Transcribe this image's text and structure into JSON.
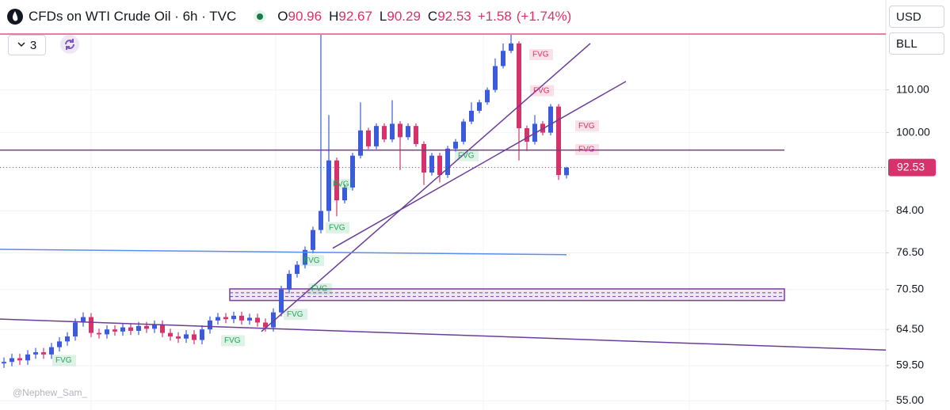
{
  "header": {
    "title": "CFDs on WTI Crude Oil · 6h · TVC",
    "ohlc": [
      {
        "label": "O",
        "value": "90.96"
      },
      {
        "label": "H",
        "value": "92.67"
      },
      {
        "label": "L",
        "value": "90.29"
      },
      {
        "label": "C",
        "value": "92.53"
      }
    ],
    "change": "+1.58",
    "change_pct": "(+1.74%)"
  },
  "toolbar": {
    "interval_count": "3",
    "currency": "USD",
    "unit": "BLL"
  },
  "watermark": "@Nephew_Sam_",
  "chart_data": {
    "type": "candlestick",
    "log": true,
    "grid": true,
    "up_color": "#3b5bdb",
    "down_color": "#d6336c",
    "xlim": [
      -0.5,
      111.5
    ],
    "ylim": [
      53.9,
      134.4
    ],
    "yticks": [
      {
        "value": 110,
        "label": "110.00"
      },
      {
        "value": 100,
        "label": "100.00"
      },
      {
        "value": 84,
        "label": "84.00"
      },
      {
        "value": 76.5,
        "label": "76.50"
      },
      {
        "value": 70.5,
        "label": "70.50"
      },
      {
        "value": 64.5,
        "label": "64.50"
      },
      {
        "value": 59.5,
        "label": "59.50"
      },
      {
        "value": 55,
        "label": "55.00"
      }
    ],
    "last": 92.53,
    "open": [
      59.8,
      60.0,
      60.5,
      60.2,
      61.0,
      61.3,
      61.0,
      62.0,
      62.8,
      63.5,
      65.5,
      66.3,
      64.0,
      63.8,
      64.5,
      64.2,
      64.8,
      64.3,
      65.0,
      64.6,
      65.2,
      64.0,
      63.5,
      63.2,
      63.8,
      63.0,
      64.5,
      65.8,
      66.3,
      66.0,
      66.5,
      65.8,
      66.2,
      65.5,
      64.8,
      67.0,
      70.5,
      73.0,
      74.5,
      77.0,
      80.5,
      84.0,
      94.0,
      86.0,
      88.5,
      95.0,
      100.5,
      97.0,
      101.5,
      98.5,
      102.0,
      99.0,
      101.5,
      97.5,
      91.5,
      95.0,
      91.0,
      96.5,
      98.0,
      102.5,
      105.0,
      107.0,
      110.0,
      116.0,
      120.0,
      122.0,
      101.0,
      98.0,
      102.0,
      100.0,
      106.0,
      90.96
    ],
    "high": [
      60.6,
      61.1,
      61.1,
      61.6,
      61.9,
      61.9,
      62.6,
      63.4,
      64.1,
      66.1,
      67.0,
      66.9,
      64.6,
      65.1,
      65.1,
      65.4,
      65.4,
      65.6,
      65.6,
      65.8,
      65.8,
      64.6,
      64.1,
      64.4,
      64.4,
      65.1,
      66.4,
      66.9,
      66.9,
      67.1,
      67.1,
      66.8,
      66.8,
      66.1,
      67.6,
      71.1,
      73.6,
      75.1,
      77.6,
      81.1,
      130.5,
      104,
      94.6,
      89.1,
      95.6,
      107,
      101.1,
      102.1,
      102.1,
      107.5,
      102.6,
      102.1,
      102.1,
      98.1,
      95.6,
      95.6,
      97.1,
      98.6,
      103.1,
      107,
      107.6,
      110.6,
      118,
      122,
      126.5,
      122.6,
      101.6,
      104,
      102.6,
      106.6,
      106.6,
      92.67
    ],
    "low": [
      59.2,
      59.4,
      59.6,
      59.6,
      60.4,
      60.4,
      60.4,
      61.4,
      62.2,
      62.9,
      64.9,
      63.4,
      63.2,
      63.2,
      63.6,
      63.6,
      63.7,
      63.7,
      64.0,
      64.0,
      63.4,
      62.9,
      62.6,
      62.6,
      62.4,
      62.4,
      63.9,
      65.2,
      65.4,
      65.4,
      65.2,
      65.2,
      64.9,
      64.2,
      64.2,
      66.4,
      69.9,
      72.4,
      73.9,
      76.4,
      79.9,
      82,
      83,
      85.4,
      87.9,
      94.4,
      96.4,
      96.4,
      97.9,
      97.9,
      92,
      98.4,
      96.9,
      89,
      90.9,
      89.5,
      90.4,
      95.9,
      97.4,
      101.9,
      104.4,
      106.4,
      109.4,
      115.4,
      119.4,
      94,
      96,
      97.4,
      99.4,
      99.4,
      90,
      90.29
    ],
    "close": [
      60.0,
      60.5,
      60.2,
      61.0,
      61.3,
      61.0,
      62.0,
      62.8,
      63.5,
      65.5,
      66.3,
      64.0,
      63.8,
      64.5,
      64.2,
      64.8,
      64.3,
      65.0,
      64.6,
      65.2,
      64.0,
      63.5,
      63.2,
      63.8,
      63.0,
      64.5,
      65.8,
      66.3,
      66.0,
      66.5,
      65.8,
      66.2,
      65.5,
      64.8,
      67.0,
      70.5,
      73.0,
      74.5,
      77.0,
      80.5,
      84.0,
      94.0,
      86.0,
      88.5,
      95.0,
      100.5,
      97.0,
      101.5,
      98.5,
      102.0,
      99.0,
      101.5,
      97.5,
      91.5,
      95.0,
      91.0,
      96.5,
      98.0,
      102.5,
      105.0,
      107.0,
      110.0,
      116.0,
      120.0,
      122.0,
      101.0,
      98.0,
      102.0,
      100.0,
      106.0,
      91.0,
      92.53
    ],
    "lines": [
      {
        "color": "#6a3d9a",
        "x": [
          -0.5,
          111.3
        ],
        "y": [
          66.0,
          61.6
        ]
      },
      {
        "color": "#6a3d9a",
        "x": [
          32.5,
          74
        ],
        "y": [
          64.2,
          122
        ]
      },
      {
        "color": "#6a3d9a",
        "x": [
          41.5,
          78.5
        ],
        "y": [
          77.3,
          112.1
        ]
      },
      {
        "color": "#6a3d9a",
        "x": [
          -0.5,
          98.5
        ],
        "y": [
          96.2,
          96.2
        ]
      },
      {
        "color": "#5b8def",
        "x": [
          -0.5,
          71
        ],
        "y": [
          77.1,
          76.2
        ]
      }
    ],
    "zones": [
      {
        "color": "#7b3fa0",
        "x": [
          28.5,
          98.5
        ],
        "y": [
          70.6,
          68.8
        ]
      }
    ],
    "fvg": [
      {
        "text": "FVG",
        "x": 6.5,
        "y": 60.2,
        "color": "#26a65b"
      },
      {
        "text": "FVG",
        "x": 27.8,
        "y": 62.9,
        "color": "#26a65b"
      },
      {
        "text": "FVG",
        "x": 35.7,
        "y": 66.7,
        "color": "#26a65b"
      },
      {
        "text": "FVG",
        "x": 38.8,
        "y": 70.6,
        "color": "#26a65b"
      },
      {
        "text": "FVG",
        "x": 37.8,
        "y": 75.2,
        "color": "#26a65b"
      },
      {
        "text": "FVG",
        "x": 41,
        "y": 80.9,
        "color": "#26a65b"
      },
      {
        "text": "FVG",
        "x": 41.5,
        "y": 89.1,
        "color": "#26a65b"
      },
      {
        "text": "FVG",
        "x": 57.3,
        "y": 95,
        "color": "#26a65b"
      },
      {
        "text": "FVG",
        "x": 66.7,
        "y": 119,
        "color": "#d6336c"
      },
      {
        "text": "FVG",
        "x": 66.8,
        "y": 109.8,
        "color": "#d6336c"
      },
      {
        "text": "FVG",
        "x": 72.5,
        "y": 101.5,
        "color": "#d6336c"
      },
      {
        "text": "FVG",
        "x": 72.5,
        "y": 96.3,
        "color": "#d6336c"
      }
    ]
  }
}
